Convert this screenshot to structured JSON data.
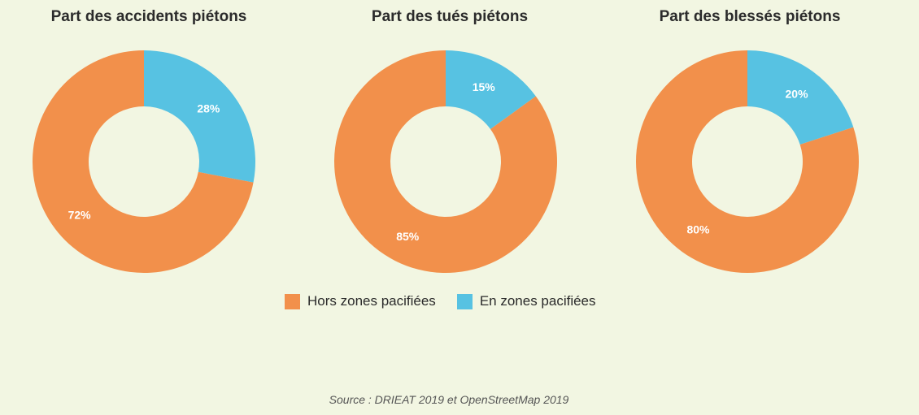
{
  "chart_data": [
    {
      "type": "pie",
      "donut": true,
      "title": "Part des accidents piétons",
      "categories": [
        "Hors zones pacifiées",
        "En zones pacifiées"
      ],
      "values": [
        72,
        28
      ],
      "labels": [
        "72%",
        "28%"
      ]
    },
    {
      "type": "pie",
      "donut": true,
      "title": "Part des tués piétons",
      "categories": [
        "Hors zones pacifiées",
        "En zones pacifiées"
      ],
      "values": [
        85,
        15
      ],
      "labels": [
        "85%",
        "15%"
      ]
    },
    {
      "type": "pie",
      "donut": true,
      "title": "Part des blessés piétons",
      "categories": [
        "Hors zones pacifiées",
        "En zones pacifiées"
      ],
      "values": [
        80,
        20
      ],
      "labels": [
        "80%",
        "20%"
      ]
    }
  ],
  "legend": {
    "items": [
      {
        "label": "Hors zones pacifiées",
        "color": "#f2904b"
      },
      {
        "label": "En zones pacifiées",
        "color": "#57c2e2"
      }
    ]
  },
  "colors": {
    "hors": "#f2904b",
    "en": "#57c2e2",
    "background": "#f2f6e2"
  },
  "source": "Source : DRIEAT 2019 et OpenStreetMap 2019"
}
